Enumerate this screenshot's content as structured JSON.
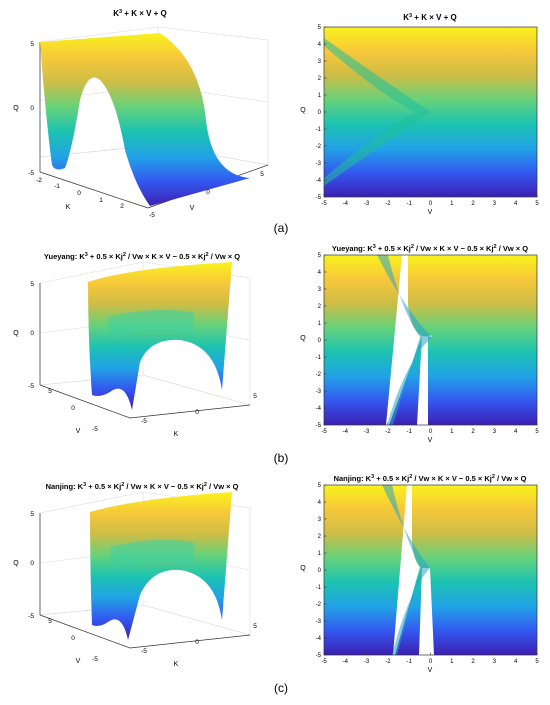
{
  "figure": {
    "palette": [
      "#3d1fb3",
      "#3358f0",
      "#21a3e6",
      "#1cc3b1",
      "#66d27c",
      "#cdbd46",
      "#f7c83a",
      "#f9f21c"
    ],
    "captions": [
      "(a)",
      "(b)",
      "(c)"
    ]
  },
  "chart_data": [
    {
      "id": "a-3d",
      "type": "surface",
      "title_parts": [
        [
          "K",
          ""
        ],
        [
          "3",
          "sup"
        ],
        [
          " + K × V + Q",
          ""
        ]
      ],
      "xlabel": "K",
      "ylabel": "V",
      "zlabel": "Q",
      "x_ticks": [
        "-2",
        "-1",
        "0",
        "1",
        "2"
      ],
      "y_ticks": [
        "-5",
        "0",
        "5"
      ],
      "z_ticks": [
        "-5",
        "0",
        "5"
      ],
      "view": "3d",
      "grid": true
    },
    {
      "id": "a-2d",
      "type": "surface",
      "title_parts": [
        [
          "K",
          ""
        ],
        [
          "3",
          "sup"
        ],
        [
          " + K × V + Q",
          ""
        ]
      ],
      "xlabel": "V",
      "ylabel": "Q",
      "xlim": [
        -5,
        5
      ],
      "ylim": [
        -5,
        5
      ],
      "x_ticks": [
        "-5",
        "-4",
        "-3",
        "-2",
        "-1",
        "0",
        "1",
        "2",
        "3",
        "4",
        "5"
      ],
      "y_ticks": [
        "-5",
        "-4",
        "-3",
        "-2",
        "-1",
        "0",
        "1",
        "2",
        "3",
        "4",
        "5"
      ],
      "view": "top"
    },
    {
      "id": "b-3d",
      "type": "surface",
      "title_parts": [
        [
          "Yueyang: K",
          ""
        ],
        [
          "3",
          "sup"
        ],
        [
          " + 0.5 × Kj",
          ""
        ],
        [
          "2",
          "sup"
        ],
        [
          " / Vw × K × V − 0.5 × Kj",
          ""
        ],
        [
          "2",
          "sup"
        ],
        [
          " / Vw × Q",
          ""
        ]
      ],
      "xlabel": "K",
      "ylabel": "V",
      "zlabel": "Q",
      "x_ticks": [
        "-5",
        "0",
        "5"
      ],
      "y_ticks": [
        "-5",
        "0",
        "5"
      ],
      "z_ticks": [
        "-5",
        "0",
        "5"
      ],
      "view": "3d",
      "grid": true
    },
    {
      "id": "b-2d",
      "type": "surface",
      "title_parts": [
        [
          "Yueyang: K",
          ""
        ],
        [
          "3",
          "sup"
        ],
        [
          " + 0.5 × Kj",
          ""
        ],
        [
          "2",
          "sup"
        ],
        [
          " / Vw × K × V − 0.5 × Kj",
          ""
        ],
        [
          "2",
          "sup"
        ],
        [
          " / Vw × Q",
          ""
        ]
      ],
      "xlabel": "V",
      "ylabel": "Q",
      "xlim": [
        -5,
        5
      ],
      "ylim": [
        -5,
        5
      ],
      "x_ticks": [
        "-5",
        "-4",
        "-3",
        "-2",
        "-1",
        "0",
        "1",
        "2",
        "3",
        "4",
        "5"
      ],
      "y_ticks": [
        "-5",
        "-4",
        "-3",
        "-2",
        "-1",
        "0",
        "1",
        "2",
        "3",
        "4",
        "5"
      ],
      "view": "top"
    },
    {
      "id": "c-3d",
      "type": "surface",
      "title_parts": [
        [
          "Nanjing: K",
          ""
        ],
        [
          "3",
          "sup"
        ],
        [
          " + 0.5 × Kj",
          ""
        ],
        [
          "2",
          "sup"
        ],
        [
          " / Vw × K × V − 0.5 × Kj",
          ""
        ],
        [
          "2",
          "sup"
        ],
        [
          " / Vw × Q",
          ""
        ]
      ],
      "xlabel": "K",
      "ylabel": "V",
      "zlabel": "Q",
      "x_ticks": [
        "-5",
        "0",
        "5"
      ],
      "y_ticks": [
        "-5",
        "0",
        "5"
      ],
      "z_ticks": [
        "-5",
        "0",
        "5"
      ],
      "view": "3d",
      "grid": true
    },
    {
      "id": "c-2d",
      "type": "surface",
      "title_parts": [
        [
          "Nanjing: K",
          ""
        ],
        [
          "3",
          "sup"
        ],
        [
          " + 0.5 × Kj",
          ""
        ],
        [
          "2",
          "sup"
        ],
        [
          " / Vw × K × V − 0.5 × Kj",
          ""
        ],
        [
          "2",
          "sup"
        ],
        [
          " / Vw × Q",
          ""
        ]
      ],
      "xlabel": "V",
      "ylabel": "Q",
      "xlim": [
        -5,
        5
      ],
      "ylim": [
        -5,
        5
      ],
      "x_ticks": [
        "-5",
        "-4",
        "-3",
        "-2",
        "-1",
        "0",
        "1",
        "2",
        "3",
        "4",
        "5"
      ],
      "y_ticks": [
        "-5",
        "-4",
        "-3",
        "-2",
        "-1",
        "0",
        "1",
        "2",
        "3",
        "4",
        "5"
      ],
      "view": "top"
    }
  ]
}
